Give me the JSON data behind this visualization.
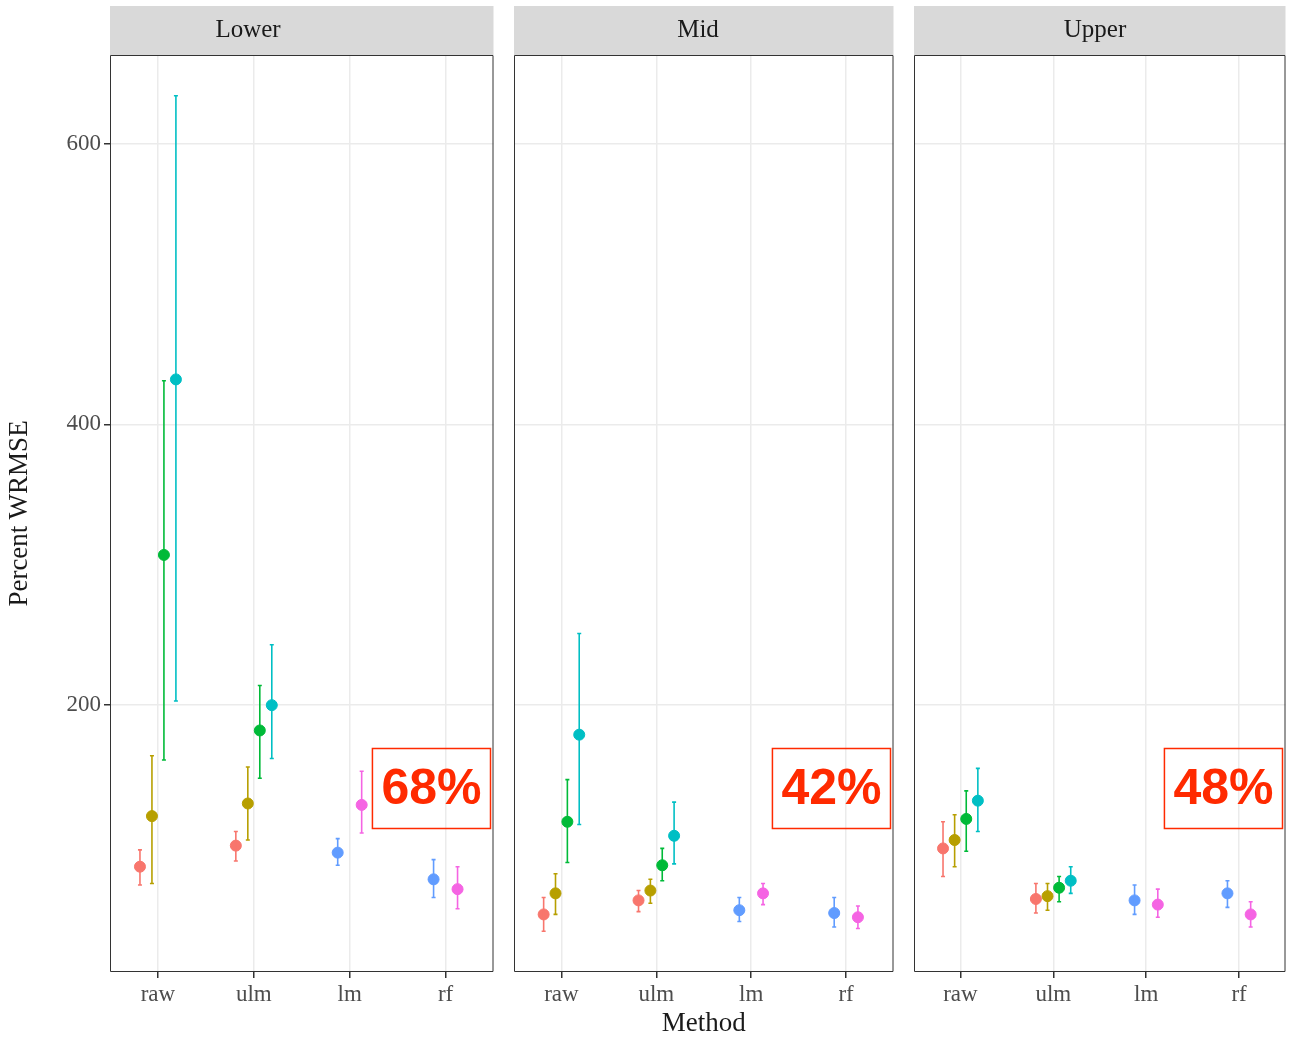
{
  "chart_data": [
    {
      "type": "scatter",
      "title": "Lower",
      "ylabel": "Percent WRMSE",
      "categories": [
        "raw",
        "ulm",
        "lm",
        "rf"
      ],
      "ylim": [
        10,
        663
      ],
      "yticks": [
        200,
        400,
        600
      ],
      "grid": true,
      "legend": false,
      "marker": "circle",
      "annotations": [
        "68%"
      ],
      "series": [
        {
          "color": "#f8766d",
          "values": [
            85,
            100,
            null,
            null
          ],
          "errors": [
            [
              72,
              97
            ],
            [
              89,
              110
            ],
            null,
            null
          ]
        },
        {
          "color": "#b79f00",
          "values": [
            121,
            130,
            null,
            null
          ],
          "errors": [
            [
              73,
              164
            ],
            [
              104,
              156
            ],
            null,
            null
          ]
        },
        {
          "color": "#00ba38",
          "values": [
            307,
            182,
            null,
            null
          ],
          "errors": [
            [
              161,
              431
            ],
            [
              148,
              214
            ],
            null,
            null
          ]
        },
        {
          "color": "#00bfc4",
          "values": [
            432,
            200,
            null,
            null
          ],
          "errors": [
            [
              203,
              634
            ],
            [
              162,
              243
            ],
            null,
            null
          ]
        },
        {
          "color": "#619cff",
          "values": [
            null,
            null,
            95,
            76
          ],
          "errors": [
            null,
            null,
            [
              86,
              105
            ],
            [
              63,
              90
            ]
          ]
        },
        {
          "color": "#f564e3",
          "values": [
            null,
            null,
            129,
            69
          ],
          "errors": [
            null,
            null,
            [
              109,
              153
            ],
            [
              55,
              85
            ]
          ]
        }
      ]
    },
    {
      "type": "scatter",
      "title": "Mid",
      "xlabel": "Method",
      "categories": [
        "raw",
        "ulm",
        "lm",
        "rf"
      ],
      "ylim": [
        10,
        663
      ],
      "yticks": [
        200,
        400,
        600
      ],
      "tick_labels": "x",
      "grid": true,
      "legend": false,
      "marker": "circle",
      "annotations": [
        "42%"
      ],
      "series": [
        {
          "color": "#f8766d",
          "values": [
            51,
            61,
            null,
            null
          ],
          "errors": [
            [
              39,
              63
            ],
            [
              53,
              68
            ],
            null,
            null
          ]
        },
        {
          "color": "#b79f00",
          "values": [
            66,
            68,
            null,
            null
          ],
          "errors": [
            [
              51,
              80
            ],
            [
              59,
              76
            ],
            null,
            null
          ]
        },
        {
          "color": "#00ba38",
          "values": [
            117,
            86,
            null,
            null
          ],
          "errors": [
            [
              88,
              147
            ],
            [
              75,
              98
            ],
            null,
            null
          ]
        },
        {
          "color": "#00bfc4",
          "values": [
            179,
            107,
            null,
            null
          ],
          "errors": [
            [
              115,
              251
            ],
            [
              87,
              131
            ],
            null,
            null
          ]
        },
        {
          "color": "#619cff",
          "values": [
            null,
            null,
            54,
            52
          ],
          "errors": [
            null,
            null,
            [
              46,
              63
            ],
            [
              42,
              63
            ]
          ]
        },
        {
          "color": "#f564e3",
          "values": [
            null,
            null,
            66,
            49
          ],
          "errors": [
            null,
            null,
            [
              58,
              73
            ],
            [
              41,
              57
            ]
          ]
        }
      ]
    },
    {
      "type": "scatter",
      "title": "Upper",
      "categories": [
        "raw",
        "ulm",
        "lm",
        "rf"
      ],
      "ylim": [
        10,
        663
      ],
      "yticks": [
        200,
        400,
        600
      ],
      "tick_labels": "x",
      "grid": true,
      "legend": false,
      "marker": "circle",
      "annotations": [
        "48%"
      ],
      "series": [
        {
          "color": "#f8766d",
          "values": [
            98,
            62,
            null,
            null
          ],
          "errors": [
            [
              78,
              117
            ],
            [
              52,
              73
            ],
            null,
            null
          ]
        },
        {
          "color": "#b79f00",
          "values": [
            104,
            64,
            null,
            null
          ],
          "errors": [
            [
              85,
              122
            ],
            [
              54,
              73
            ],
            null,
            null
          ]
        },
        {
          "color": "#00ba38",
          "values": [
            119,
            70,
            null,
            null
          ],
          "errors": [
            [
              96,
              139
            ],
            [
              60,
              78
            ],
            null,
            null
          ]
        },
        {
          "color": "#00bfc4",
          "values": [
            132,
            75,
            null,
            null
          ],
          "errors": [
            [
              110,
              155
            ],
            [
              66,
              85
            ],
            null,
            null
          ]
        },
        {
          "color": "#619cff",
          "values": [
            null,
            null,
            61,
            66
          ],
          "errors": [
            null,
            null,
            [
              51,
              72
            ],
            [
              56,
              75
            ]
          ]
        },
        {
          "color": "#f564e3",
          "values": [
            null,
            null,
            58,
            51
          ],
          "errors": [
            null,
            null,
            [
              49,
              69
            ],
            [
              42,
              60
            ]
          ]
        }
      ]
    }
  ]
}
